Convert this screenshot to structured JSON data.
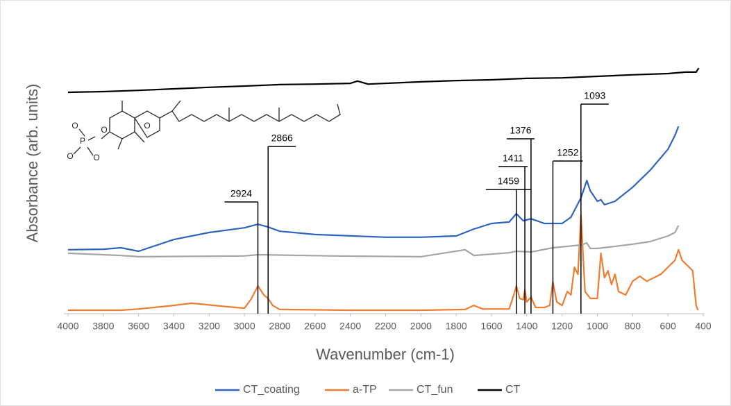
{
  "chart_data": {
    "type": "line",
    "x_label": "Wavenumber (cm-1)",
    "y_label": "Absorbance (arb. units)",
    "xlim": [
      4000,
      400
    ],
    "xticks": [
      4000,
      3800,
      3600,
      3400,
      3200,
      3000,
      2800,
      2600,
      2400,
      2200,
      2000,
      1800,
      1600,
      1400,
      1200,
      1000,
      800,
      600,
      400
    ],
    "ylim": [
      0,
      100
    ],
    "legend": "bottom",
    "peaks": [
      2924,
      2866,
      1459,
      1411,
      1376,
      1252,
      1093
    ],
    "molecule_labels": [
      "O",
      "O",
      "P",
      "O",
      "O",
      "O"
    ],
    "series": [
      {
        "name": "CT_coating",
        "color": "#2e64c0",
        "x": [
          4000,
          3800,
          3700,
          3600,
          3400,
          3200,
          3000,
          2924,
          2866,
          2800,
          2600,
          2200,
          2000,
          1800,
          1700,
          1600,
          1500,
          1459,
          1420,
          1376,
          1300,
          1252,
          1200,
          1150,
          1093,
          1060,
          1040,
          1000,
          980,
          960,
          900,
          800,
          700,
          600,
          560,
          540
        ],
        "values": [
          25.6,
          25.8,
          26.4,
          25,
          29.7,
          32.5,
          34.4,
          35.8,
          34.7,
          33,
          31.7,
          30.6,
          30.6,
          31.1,
          33.9,
          36.1,
          36.7,
          40,
          37.2,
          38,
          36.1,
          36.1,
          36.1,
          38.6,
          46.4,
          53.3,
          49.2,
          45,
          45.6,
          43.6,
          45,
          50.6,
          57.5,
          65.8,
          71.4,
          75
        ]
      },
      {
        "name": "a-TP",
        "color": "#ed7d31",
        "x": [
          4000,
          3700,
          3600,
          3400,
          3300,
          3100,
          3000,
          2960,
          2924,
          2890,
          2866,
          2840,
          2800,
          2400,
          2000,
          1750,
          1700,
          1650,
          1500,
          1480,
          1459,
          1440,
          1420,
          1411,
          1400,
          1376,
          1350,
          1300,
          1270,
          1252,
          1230,
          1200,
          1170,
          1150,
          1130,
          1110,
          1093,
          1070,
          1040,
          1000,
          980,
          960,
          940,
          920,
          900,
          880,
          840,
          800,
          760,
          720,
          680,
          640,
          600,
          560,
          540,
          520,
          480,
          460,
          440,
          430
        ],
        "values": [
          1.4,
          1.4,
          1.9,
          3.3,
          4.2,
          2.8,
          2.2,
          6.1,
          11.1,
          7.5,
          6.1,
          3.3,
          1.7,
          1.4,
          1.4,
          1.7,
          3.3,
          1.9,
          1.9,
          6.1,
          11.1,
          6.1,
          5.6,
          9.4,
          4.7,
          6.7,
          2.5,
          2.5,
          3.3,
          12.8,
          4.7,
          3.3,
          8.9,
          7.5,
          18.6,
          15.8,
          39.4,
          8.9,
          6.1,
          6.1,
          24.2,
          14.4,
          17.2,
          11.7,
          15.8,
          8.9,
          7.5,
          13,
          15,
          13,
          14.4,
          15.8,
          18.6,
          21.4,
          25.6,
          21.4,
          18.6,
          17.2,
          3.3,
          1.4
        ]
      },
      {
        "name": "CT_fun",
        "color": "#a5a5a5",
        "x": [
          4000,
          3700,
          3600,
          3000,
          2924,
          2500,
          2000,
          1750,
          1700,
          1500,
          1459,
          1376,
          1252,
          1093,
          1060,
          1040,
          1000,
          800,
          700,
          600,
          560,
          540
        ],
        "values": [
          24.2,
          23.3,
          22.8,
          23.1,
          23.6,
          23.1,
          22.8,
          25.6,
          23.3,
          24.4,
          25,
          24.7,
          26.4,
          27.5,
          28.3,
          26.1,
          26.1,
          27.8,
          28.9,
          31.1,
          32.5,
          35.3
        ]
      },
      {
        "name": "CT",
        "color": "#000000",
        "x": [
          4000,
          3800,
          3600,
          3400,
          3200,
          3000,
          2800,
          2600,
          2400,
          2360,
          2300,
          2000,
          1800,
          1600,
          1400,
          1200,
          1000,
          800,
          600,
          500,
          440,
          430,
          425
        ],
        "values": [
          88.6,
          88.9,
          89.4,
          90,
          90.6,
          91.1,
          91.7,
          91.9,
          92.2,
          93.1,
          91.9,
          92.8,
          93.3,
          93.6,
          94.2,
          94.4,
          95,
          95.6,
          96.1,
          96.7,
          96.7,
          97.8,
          98.3
        ]
      }
    ]
  }
}
